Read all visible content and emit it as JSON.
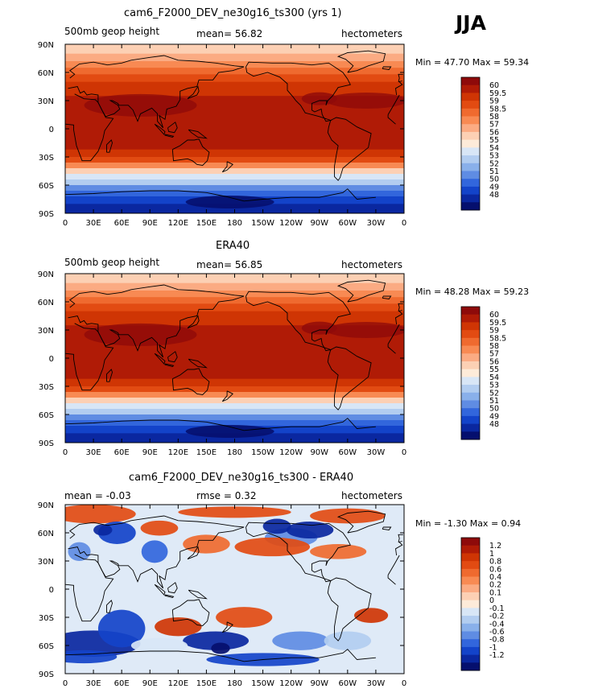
{
  "season": "JJA",
  "x_ticks": [
    "0",
    "30E",
    "60E",
    "90E",
    "120E",
    "150E",
    "180",
    "150W",
    "120W",
    "90W",
    "60W",
    "30W",
    "0"
  ],
  "y_ticks": [
    "90N",
    "60N",
    "30N",
    "0",
    "30S",
    "60S",
    "90S"
  ],
  "chart_data": [
    {
      "type": "heatmap",
      "title": "cam6_F2000_DEV_ne30g16_ts300 (yrs 1)",
      "left_label": "500mb geop height",
      "center_label": "mean=   56.82",
      "right_label": "hectometers",
      "min_label": "Min =  47.70",
      "max_label": "Max =   59.34",
      "min": 47.7,
      "max": 59.34,
      "mean": 56.82,
      "colorbar_labels": [
        "60",
        "59.5",
        "59",
        "58.5",
        "58",
        "57",
        "56",
        "55",
        "54",
        "53",
        "52",
        "51",
        "50",
        "49",
        "48"
      ],
      "colorbar_colors": [
        "#8e0a0a",
        "#b01b06",
        "#cf3504",
        "#e24b12",
        "#ef6a2f",
        "#f88a53",
        "#fbab83",
        "#fcd0b4",
        "#fdebd9",
        "#d8e6f6",
        "#b2cdf0",
        "#89b0ea",
        "#5f8ce3",
        "#3266dc",
        "#1343c9",
        "#0a27a0",
        "#050f6e"
      ]
    },
    {
      "type": "heatmap",
      "title": "ERA40",
      "left_label": "500mb geop height",
      "center_label": "mean=   56.85",
      "right_label": "hectometers",
      "min_label": "Min =  48.28",
      "max_label": "Max =   59.23",
      "min": 48.28,
      "max": 59.23,
      "mean": 56.85,
      "colorbar_labels": [
        "60",
        "59.5",
        "59",
        "58.5",
        "58",
        "57",
        "56",
        "55",
        "54",
        "53",
        "52",
        "51",
        "50",
        "49",
        "48"
      ],
      "colorbar_colors": [
        "#8e0a0a",
        "#b01b06",
        "#cf3504",
        "#e24b12",
        "#ef6a2f",
        "#f88a53",
        "#fbab83",
        "#fcd0b4",
        "#fdebd9",
        "#d8e6f6",
        "#b2cdf0",
        "#89b0ea",
        "#5f8ce3",
        "#3266dc",
        "#1343c9",
        "#0a27a0",
        "#050f6e"
      ]
    },
    {
      "type": "heatmap",
      "title": "cam6_F2000_DEV_ne30g16_ts300 - ERA40",
      "left_label": "mean =   -0.03",
      "center_label": "rmse =     0.32",
      "right_label": "hectometers",
      "min_label": "Min =  -1.30",
      "max_label": "Max =    0.94",
      "min": -1.3,
      "max": 0.94,
      "mean": -0.03,
      "rmse": 0.32,
      "colorbar_labels": [
        "1.2",
        "1",
        "0.8",
        "0.6",
        "0.4",
        "0.2",
        "0.1",
        "0",
        "-0.1",
        "-0.2",
        "-0.4",
        "-0.6",
        "-0.8",
        "-1",
        "-1.2"
      ],
      "colorbar_colors": [
        "#8e0a0a",
        "#b01b06",
        "#cf3504",
        "#e24b12",
        "#ef6a2f",
        "#f88a53",
        "#fbab83",
        "#fcd0b4",
        "#fdebd9",
        "#d8e6f6",
        "#b2cdf0",
        "#89b0ea",
        "#5f8ce3",
        "#3266dc",
        "#1343c9",
        "#0a27a0",
        "#050f6e"
      ]
    }
  ]
}
